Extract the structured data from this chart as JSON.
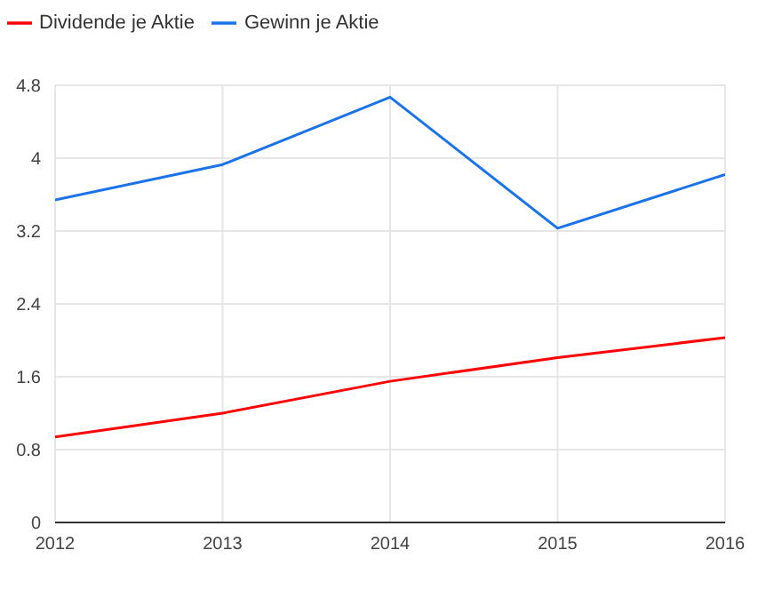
{
  "chart_data": {
    "type": "line",
    "x": [
      2012,
      2013,
      2014,
      2015,
      2016
    ],
    "series": [
      {
        "name": "Gewinn je Aktie",
        "color": "#1a73e8",
        "values": [
          3.54,
          3.93,
          4.67,
          3.23,
          3.82
        ]
      },
      {
        "name": "Dividende je Aktie",
        "color": "#ff0000",
        "values": [
          0.94,
          1.2,
          1.55,
          1.81,
          2.03
        ]
      }
    ],
    "xlim": [
      2012,
      2016
    ],
    "xticks": [
      2012,
      2013,
      2014,
      2015,
      2016
    ],
    "ylim": [
      0,
      4.8
    ],
    "yticks": [
      0,
      0.8,
      1.6,
      2.4,
      3.2,
      4,
      4.8
    ],
    "grid": true,
    "legend": "top left",
    "marker": "none",
    "line_style": "solid"
  }
}
